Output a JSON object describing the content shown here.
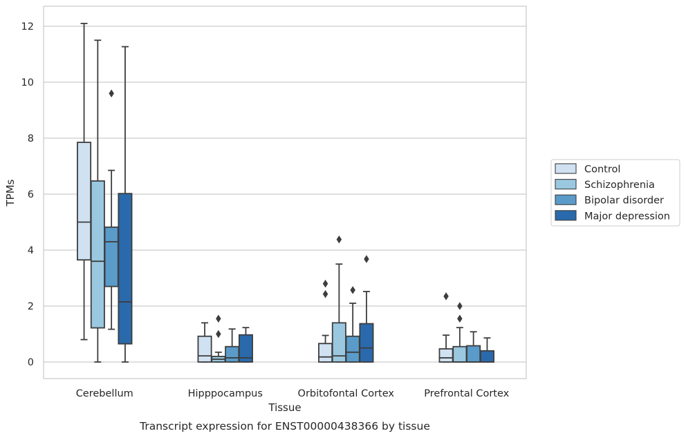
{
  "chart_data": {
    "type": "boxplot",
    "caption": "Transcript expression for ENST00000438366 by tissue",
    "xlabel": "Tissue",
    "ylabel": "TPMs",
    "ylim": [
      -0.6,
      12.7
    ],
    "yticks": [
      0,
      2,
      4,
      6,
      8,
      10,
      12
    ],
    "grid": "horizontal",
    "legend_position": "right",
    "categories": [
      "Cerebellum",
      "Hipppocampus",
      "Orbitofontal Cortex",
      "Prefrontal Cortex"
    ],
    "series": [
      {
        "name": "Control",
        "color": "#d0e1f2",
        "boxes": [
          {
            "whislo": 0.8,
            "q1": 3.65,
            "med": 5.0,
            "q3": 7.85,
            "whishi": 12.1,
            "fliers": []
          },
          {
            "whislo": 0.0,
            "q1": 0.0,
            "med": 0.22,
            "q3": 0.92,
            "whishi": 1.4,
            "fliers": []
          },
          {
            "whislo": 0.0,
            "q1": 0.0,
            "med": 0.18,
            "q3": 0.66,
            "whishi": 0.95,
            "fliers": [
              2.43,
              2.8
            ]
          },
          {
            "whislo": 0.0,
            "q1": 0.0,
            "med": 0.15,
            "q3": 0.47,
            "whishi": 0.96,
            "fliers": [
              2.35
            ]
          }
        ]
      },
      {
        "name": "Schizophrenia",
        "color": "#9ac8e0",
        "boxes": [
          {
            "whislo": 0.0,
            "q1": 1.22,
            "med": 3.6,
            "q3": 6.47,
            "whishi": 11.5,
            "fliers": []
          },
          {
            "whislo": 0.0,
            "q1": 0.0,
            "med": 0.1,
            "q3": 0.2,
            "whishi": 0.35,
            "fliers": [
              1.0,
              1.55
            ]
          },
          {
            "whislo": 0.0,
            "q1": 0.0,
            "med": 0.22,
            "q3": 1.4,
            "whishi": 3.5,
            "fliers": [
              4.38
            ]
          },
          {
            "whislo": 0.0,
            "q1": 0.0,
            "med": 0.0,
            "q3": 0.55,
            "whishi": 1.23,
            "fliers": [
              1.55,
              2.0
            ]
          }
        ]
      },
      {
        "name": "Bipolar disorder",
        "color": "#5a9bc9",
        "boxes": [
          {
            "whislo": 1.17,
            "q1": 2.7,
            "med": 4.3,
            "q3": 4.82,
            "whishi": 6.85,
            "fliers": [
              9.6
            ]
          },
          {
            "whislo": 0.0,
            "q1": 0.0,
            "med": 0.15,
            "q3": 0.55,
            "whishi": 1.18,
            "fliers": []
          },
          {
            "whislo": 0.0,
            "q1": 0.0,
            "med": 0.35,
            "q3": 0.92,
            "whishi": 2.1,
            "fliers": [
              2.57
            ]
          },
          {
            "whislo": 0.0,
            "q1": 0.0,
            "med": 0.0,
            "q3": 0.58,
            "whishi": 1.08,
            "fliers": []
          }
        ]
      },
      {
        "name": "Major depression",
        "color": "#2a6aac",
        "boxes": [
          {
            "whislo": 0.0,
            "q1": 0.65,
            "med": 2.15,
            "q3": 6.02,
            "whishi": 11.27,
            "fliers": []
          },
          {
            "whislo": 0.0,
            "q1": 0.0,
            "med": 0.15,
            "q3": 0.97,
            "whishi": 1.23,
            "fliers": []
          },
          {
            "whislo": 0.0,
            "q1": 0.0,
            "med": 0.5,
            "q3": 1.37,
            "whishi": 2.52,
            "fliers": [
              3.68
            ]
          },
          {
            "whislo": 0.0,
            "q1": 0.0,
            "med": 0.0,
            "q3": 0.4,
            "whishi": 0.86,
            "fliers": []
          }
        ]
      }
    ]
  }
}
